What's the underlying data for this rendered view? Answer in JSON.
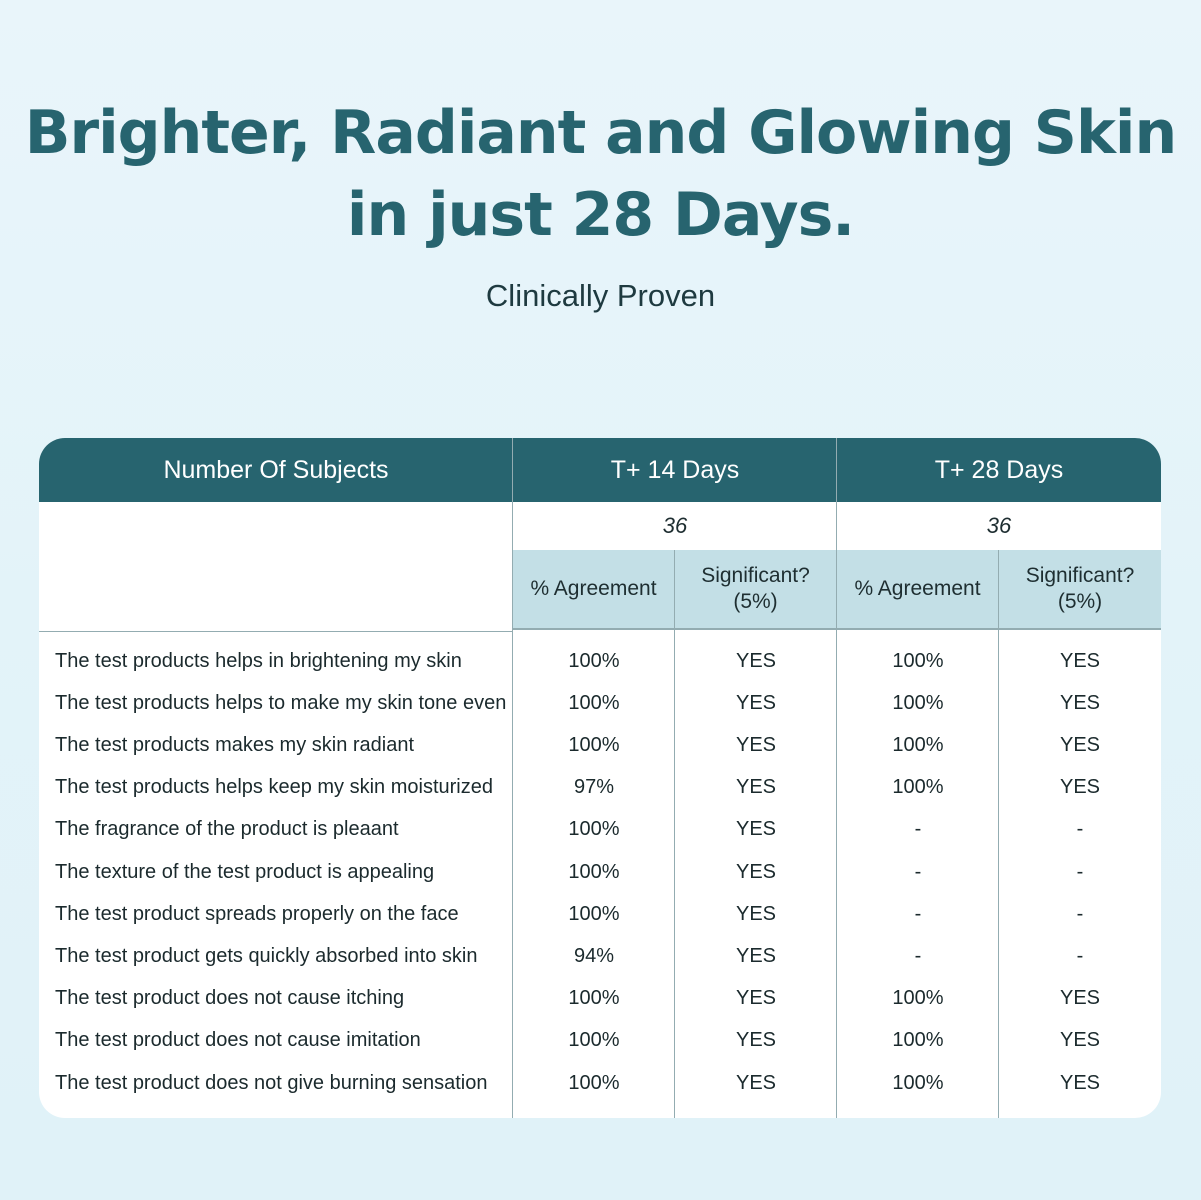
{
  "title_lines": [
    "Brighter, Radiant and Glowing Skin",
    "in just 28 Days."
  ],
  "subtitle": "Clinically Proven",
  "colors": {
    "header_bg": "#27646f",
    "subheader_bg": "#c3dfe6",
    "title": "#27646f"
  },
  "table": {
    "header": {
      "subjects": "Number Of Subjects",
      "period1": "T+ 14 Days",
      "period2": "T+ 28 Days"
    },
    "subjects": {
      "period1": "36",
      "period2": "36"
    },
    "subheaders": [
      "% Agreement",
      "Significant? (5%)",
      "% Agreement",
      "Significant? (5%)"
    ],
    "rows": [
      {
        "statement": "The test products helps in brightening my skin",
        "a14": "100%",
        "s14": "YES",
        "a28": "100%",
        "s28": "YES"
      },
      {
        "statement": "The test products helps to make my skin tone even",
        "a14": "100%",
        "s14": "YES",
        "a28": "100%",
        "s28": "YES"
      },
      {
        "statement": "The test products makes my skin radiant",
        "a14": "100%",
        "s14": "YES",
        "a28": "100%",
        "s28": "YES"
      },
      {
        "statement": "The test products helps keep my skin moisturized",
        "a14": "97%",
        "s14": "YES",
        "a28": "100%",
        "s28": "YES"
      },
      {
        "statement": "The fragrance of the product is pleaant",
        "a14": "100%",
        "s14": "YES",
        "a28": "-",
        "s28": "-"
      },
      {
        "statement": "The texture of the test product is appealing",
        "a14": "100%",
        "s14": "YES",
        "a28": "-",
        "s28": "-"
      },
      {
        "statement": "The test product spreads properly on the face",
        "a14": "100%",
        "s14": "YES",
        "a28": "-",
        "s28": "-"
      },
      {
        "statement": "The test product gets quickly absorbed into skin",
        "a14": "94%",
        "s14": "YES",
        "a28": "-",
        "s28": "-"
      },
      {
        "statement": "The test product does not cause itching",
        "a14": "100%",
        "s14": "YES",
        "a28": "100%",
        "s28": "YES"
      },
      {
        "statement": "The test product does not cause imitation",
        "a14": "100%",
        "s14": "YES",
        "a28": "100%",
        "s28": "YES"
      },
      {
        "statement": "The test product does not give burning sensation",
        "a14": "100%",
        "s14": "YES",
        "a28": "100%",
        "s28": "YES"
      }
    ]
  }
}
